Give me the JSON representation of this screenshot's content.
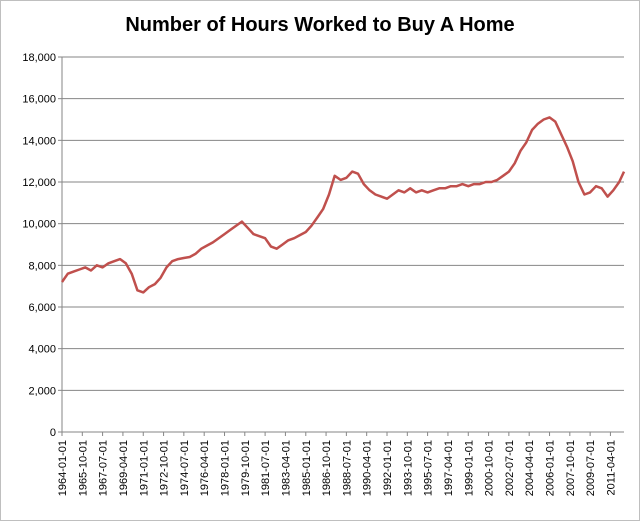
{
  "chart_data": {
    "type": "line",
    "title": "Number of Hours Worked to Buy A Home",
    "xlabel": "",
    "ylabel": "",
    "ylim": [
      0,
      18000
    ],
    "y_ticks": [
      0,
      2000,
      4000,
      6000,
      8000,
      10000,
      12000,
      14000,
      16000,
      18000
    ],
    "y_tick_labels": [
      "0",
      "2,000",
      "4,000",
      "6,000",
      "8,000",
      "10,000",
      "12,000",
      "14,000",
      "16,000",
      "18,000"
    ],
    "x_range": [
      "1964-01-01",
      "2012-06-01"
    ],
    "x_tick_labels": [
      "1964-01-01",
      "1965-10-01",
      "1967-07-01",
      "1969-04-01",
      "1971-01-01",
      "1972-10-01",
      "1974-07-01",
      "1976-04-01",
      "1978-01-01",
      "1979-10-01",
      "1981-07-01",
      "1983-04-01",
      "1985-01-01",
      "1986-10-01",
      "1988-07-01",
      "1990-04-01",
      "1992-01-01",
      "1993-10-01",
      "1995-07-01",
      "1997-04-01",
      "1999-01-01",
      "2000-10-01",
      "2002-07-01",
      "2004-04-01",
      "2006-01-01",
      "2007-10-01",
      "2009-07-01",
      "2011-04-01"
    ],
    "grid": true,
    "legend": "none",
    "series": [
      {
        "color": "#c0504d",
        "points": [
          [
            "1964-01-01",
            7200
          ],
          [
            "1964-07-01",
            7600
          ],
          [
            "1965-01-01",
            7700
          ],
          [
            "1965-07-01",
            7800
          ],
          [
            "1966-01-01",
            7900
          ],
          [
            "1966-07-01",
            7750
          ],
          [
            "1967-01-01",
            8000
          ],
          [
            "1967-07-01",
            7900
          ],
          [
            "1968-01-01",
            8100
          ],
          [
            "1968-07-01",
            8200
          ],
          [
            "1969-01-01",
            8300
          ],
          [
            "1969-07-01",
            8100
          ],
          [
            "1970-01-01",
            7600
          ],
          [
            "1970-07-01",
            6800
          ],
          [
            "1971-01-01",
            6700
          ],
          [
            "1971-07-01",
            6950
          ],
          [
            "1972-01-01",
            7100
          ],
          [
            "1972-07-01",
            7400
          ],
          [
            "1973-01-01",
            7900
          ],
          [
            "1973-07-01",
            8200
          ],
          [
            "1974-01-01",
            8300
          ],
          [
            "1974-07-01",
            8350
          ],
          [
            "1975-01-01",
            8400
          ],
          [
            "1975-07-01",
            8550
          ],
          [
            "1976-01-01",
            8800
          ],
          [
            "1976-07-01",
            8950
          ],
          [
            "1977-01-01",
            9100
          ],
          [
            "1977-07-01",
            9300
          ],
          [
            "1978-01-01",
            9500
          ],
          [
            "1978-07-01",
            9700
          ],
          [
            "1979-01-01",
            9900
          ],
          [
            "1979-07-01",
            10100
          ],
          [
            "1980-01-01",
            9800
          ],
          [
            "1980-07-01",
            9500
          ],
          [
            "1981-01-01",
            9400
          ],
          [
            "1981-07-01",
            9300
          ],
          [
            "1982-01-01",
            8900
          ],
          [
            "1982-07-01",
            8800
          ],
          [
            "1983-01-01",
            9000
          ],
          [
            "1983-07-01",
            9200
          ],
          [
            "1984-01-01",
            9300
          ],
          [
            "1984-07-01",
            9450
          ],
          [
            "1985-01-01",
            9600
          ],
          [
            "1985-07-01",
            9900
          ],
          [
            "1986-01-01",
            10300
          ],
          [
            "1986-07-01",
            10700
          ],
          [
            "1987-01-01",
            11400
          ],
          [
            "1987-07-01",
            12300
          ],
          [
            "1988-01-01",
            12100
          ],
          [
            "1988-07-01",
            12200
          ],
          [
            "1989-01-01",
            12500
          ],
          [
            "1989-07-01",
            12400
          ],
          [
            "1990-01-01",
            11900
          ],
          [
            "1990-07-01",
            11600
          ],
          [
            "1991-01-01",
            11400
          ],
          [
            "1991-07-01",
            11300
          ],
          [
            "1992-01-01",
            11200
          ],
          [
            "1992-07-01",
            11400
          ],
          [
            "1993-01-01",
            11600
          ],
          [
            "1993-07-01",
            11500
          ],
          [
            "1994-01-01",
            11700
          ],
          [
            "1994-07-01",
            11500
          ],
          [
            "1995-01-01",
            11600
          ],
          [
            "1995-07-01",
            11500
          ],
          [
            "1996-01-01",
            11600
          ],
          [
            "1996-07-01",
            11700
          ],
          [
            "1997-01-01",
            11700
          ],
          [
            "1997-07-01",
            11800
          ],
          [
            "1998-01-01",
            11800
          ],
          [
            "1998-07-01",
            11900
          ],
          [
            "1999-01-01",
            11800
          ],
          [
            "1999-07-01",
            11900
          ],
          [
            "2000-01-01",
            11900
          ],
          [
            "2000-07-01",
            12000
          ],
          [
            "2001-01-01",
            12000
          ],
          [
            "2001-07-01",
            12100
          ],
          [
            "2002-01-01",
            12300
          ],
          [
            "2002-07-01",
            12500
          ],
          [
            "2003-01-01",
            12900
          ],
          [
            "2003-07-01",
            13500
          ],
          [
            "2004-01-01",
            13900
          ],
          [
            "2004-07-01",
            14500
          ],
          [
            "2005-01-01",
            14800
          ],
          [
            "2005-07-01",
            15000
          ],
          [
            "2006-01-01",
            15100
          ],
          [
            "2006-07-01",
            14900
          ],
          [
            "2007-01-01",
            14300
          ],
          [
            "2007-07-01",
            13700
          ],
          [
            "2008-01-01",
            13000
          ],
          [
            "2008-07-01",
            12000
          ],
          [
            "2009-01-01",
            11400
          ],
          [
            "2009-07-01",
            11500
          ],
          [
            "2010-01-01",
            11800
          ],
          [
            "2010-07-01",
            11700
          ],
          [
            "2011-01-01",
            11300
          ],
          [
            "2011-07-01",
            11600
          ],
          [
            "2012-01-01",
            12000
          ],
          [
            "2012-06-01",
            12500
          ]
        ]
      }
    ]
  }
}
